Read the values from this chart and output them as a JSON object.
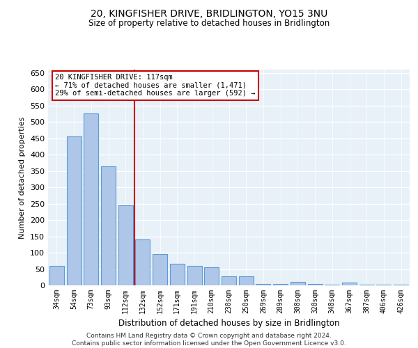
{
  "title": "20, KINGFISHER DRIVE, BRIDLINGTON, YO15 3NU",
  "subtitle": "Size of property relative to detached houses in Bridlington",
  "xlabel": "Distribution of detached houses by size in Bridlington",
  "ylabel": "Number of detached properties",
  "categories": [
    "34sqm",
    "54sqm",
    "73sqm",
    "93sqm",
    "112sqm",
    "132sqm",
    "152sqm",
    "171sqm",
    "191sqm",
    "210sqm",
    "230sqm",
    "250sqm",
    "269sqm",
    "289sqm",
    "308sqm",
    "328sqm",
    "348sqm",
    "367sqm",
    "387sqm",
    "406sqm",
    "426sqm"
  ],
  "values": [
    60,
    455,
    525,
    365,
    245,
    140,
    95,
    65,
    60,
    55,
    28,
    28,
    5,
    5,
    10,
    5,
    2,
    8,
    2,
    2,
    2
  ],
  "bar_color": "#aec6e8",
  "bar_edge_color": "#5b9bd5",
  "background_color": "#e8f0f8",
  "grid_color": "#ffffff",
  "ref_line_color": "#cc0000",
  "annotation_text": "20 KINGFISHER DRIVE: 117sqm\n← 71% of detached houses are smaller (1,471)\n29% of semi-detached houses are larger (592) →",
  "annotation_box_color": "#cc0000",
  "ylim": [
    0,
    660
  ],
  "yticks": [
    0,
    50,
    100,
    150,
    200,
    250,
    300,
    350,
    400,
    450,
    500,
    550,
    600,
    650
  ],
  "footnote": "Contains HM Land Registry data © Crown copyright and database right 2024.\nContains public sector information licensed under the Open Government Licence v3.0.",
  "bar_width": 0.85
}
